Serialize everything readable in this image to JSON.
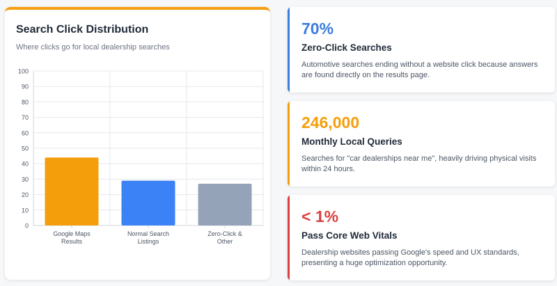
{
  "chart_card": {
    "title": "Search Click Distribution",
    "subtitle": "Where clicks go for local dealership searches",
    "accent_color": "#f59e0b"
  },
  "chart_data": {
    "type": "bar",
    "categories": [
      [
        "Google Maps",
        "Results"
      ],
      [
        "Normal Search",
        "Listings"
      ],
      [
        "Zero-Click &",
        "Other"
      ]
    ],
    "values": [
      44,
      29,
      27
    ],
    "colors": [
      "#f59e0b",
      "#3b82f6",
      "#94a3b8"
    ],
    "ylim": [
      0,
      100
    ],
    "yticks": [
      0,
      10,
      20,
      30,
      40,
      50,
      60,
      70,
      80,
      90,
      100
    ],
    "grid": true,
    "title": "Search Click Distribution",
    "subtitle": "Where clicks go for local dealership searches",
    "xlabel": "",
    "ylabel": ""
  },
  "stats": [
    {
      "value": "70%",
      "label": "Zero-Click Searches",
      "description": "Automotive searches ending without a website click because answers are found directly on the results page.",
      "color": "#3b7ddd"
    },
    {
      "value": "246,000",
      "label": "Monthly Local Queries",
      "description": "Searches for \"car dealerships near me\", heavily driving physical visits within 24 hours.",
      "color": "#f59e0b"
    },
    {
      "value": "< 1%",
      "label": "Pass Core Web Vitals",
      "description": "Dealership websites passing Google's speed and UX standards, presenting a huge optimization opportunity.",
      "color": "#dc3f3f"
    }
  ]
}
